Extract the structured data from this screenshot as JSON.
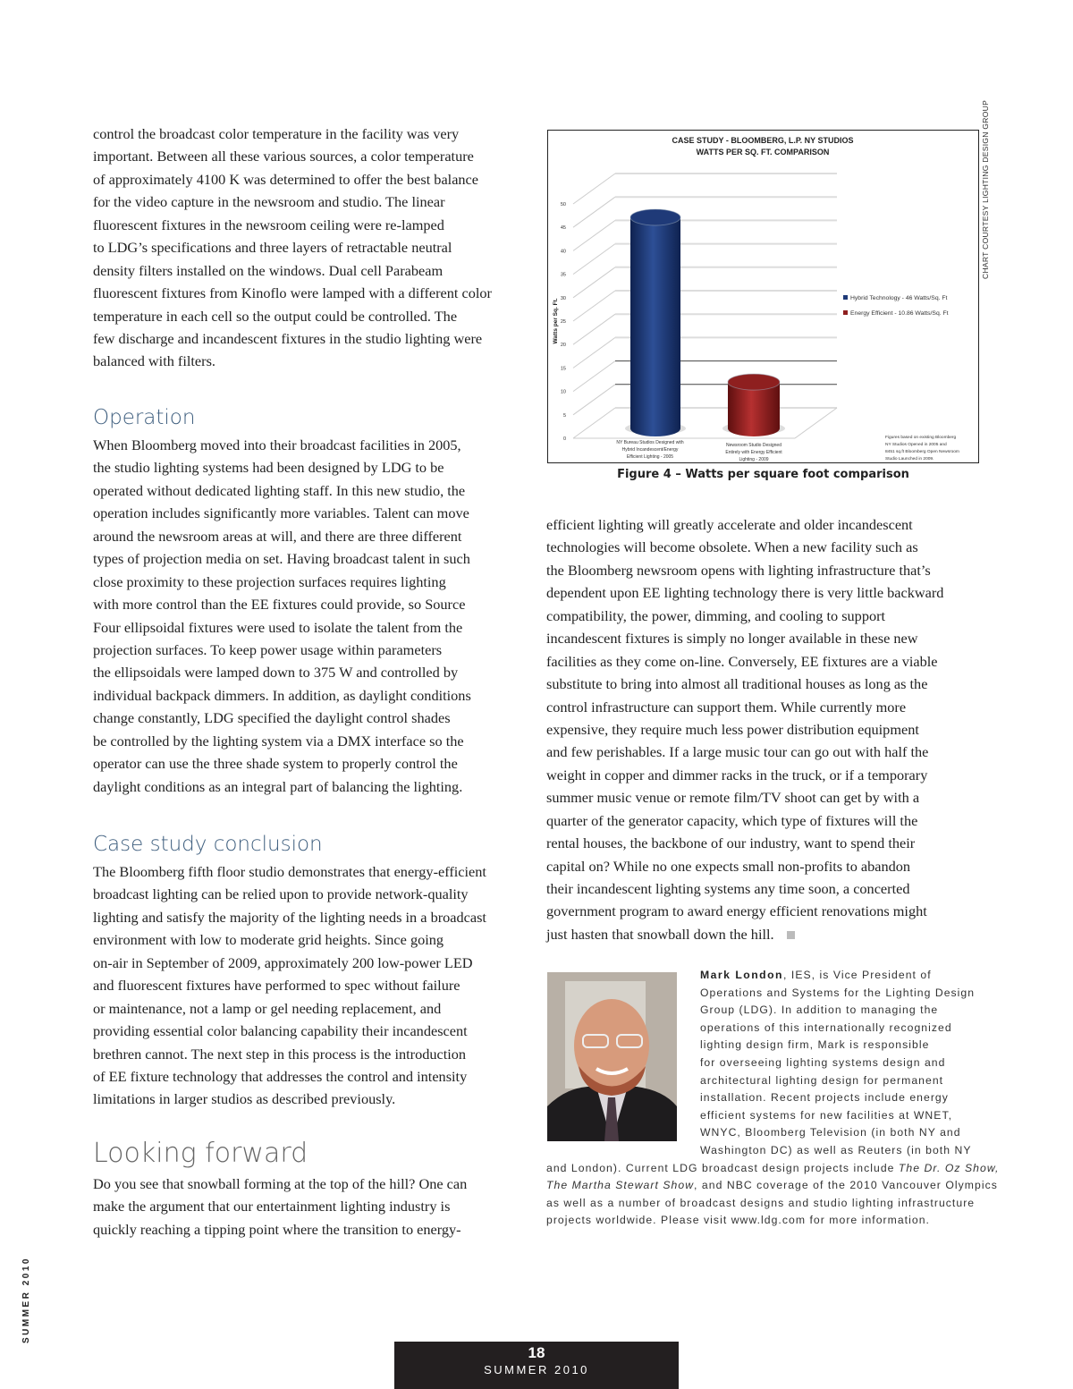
{
  "left_column": {
    "intro_lines": [
      "control the broadcast color temperature in the facility was very",
      "important. Between all these various sources, a color temperature",
      "of approximately 4100 K was determined to offer the best balance",
      "for the video capture in the newsroom and studio. The linear",
      "fluorescent fixtures in the newsroom ceiling were re-lamped",
      "to LDG’s specifications and three layers of retractable neutral",
      "density filters installed on the windows. Dual cell Parabeam",
      "fluorescent fixtures from Kinoflo were lamped with a different color",
      "temperature in each cell so the output could be controlled. The",
      "few discharge and incandescent fixtures in the studio lighting were",
      "balanced with filters."
    ],
    "operation_heading": "Operation",
    "operation_lines": [
      "When Bloomberg moved into their broadcast facilities in 2005,",
      "the studio lighting systems had been designed by LDG to be",
      "operated without dedicated lighting staff. In this new studio, the",
      "operation includes significantly more variables. Talent can move",
      "around the newsroom areas at will, and there are three different",
      "types of projection media on set. Having broadcast talent in such",
      "close proximity to these projection surfaces requires lighting",
      "with more control than the EE fixtures could provide, so Source",
      "Four ellipsoidal fixtures were used to isolate the talent from the",
      "projection surfaces. To keep power usage within parameters",
      "the ellipsoidals were lamped down to 375 W and controlled by",
      "individual backpack dimmers. In addition, as daylight conditions",
      "change constantly, LDG specified the daylight control shades",
      "be controlled by the lighting system via a DMX interface so the",
      "operator can use the three shade system to properly control the",
      "daylight conditions as an integral part of balancing the lighting."
    ],
    "conclusion_heading": "Case study conclusion",
    "conclusion_lines": [
      "The Bloomberg fifth floor studio demonstrates that energy-efficient",
      "broadcast lighting can be relied upon to provide network-quality",
      "lighting and satisfy the majority of the lighting needs in a broadcast",
      "environment with low to moderate grid heights. Since going",
      "on-air in September of 2009, approximately 200 low-power LED",
      "and fluorescent fixtures have performed to spec without failure",
      "or maintenance, not a lamp or gel needing replacement, and",
      "providing essential color balancing capability their incandescent",
      "brethren cannot. The next step in this process is the introduction",
      "of EE fixture technology that addresses the control and intensity",
      "limitations in larger studios as described previously."
    ],
    "forward_heading": "Looking forward",
    "forward_lines": [
      "  Do you see that snowball forming at the top of the hill? One can",
      "make the argument that our entertainment lighting industry is",
      "quickly reaching a tipping point where the transition to energy-"
    ]
  },
  "right_column": {
    "figure_caption": "Figure 4 – Watts per square foot comparison",
    "chart_credit": "CHART COURTESY LIGHTING DESIGN GROUP",
    "body_lines": [
      "efficient lighting will greatly accelerate and older incandescent",
      "technologies will become obsolete. When a new facility such as",
      "the Bloomberg newsroom opens with lighting infrastructure that’s",
      "dependent upon EE lighting technology there is very little backward",
      "compatibility, the power, dimming, and cooling to support",
      "incandescent fixtures is simply no longer available in these new",
      "facilities as they come on-line. Conversely, EE fixtures are a viable",
      "substitute to bring into almost all traditional houses as long as the",
      "control infrastructure can support them. While currently more",
      "expensive, they require much less power distribution equipment",
      "and few perishables. If a large music tour can go out with half the",
      "weight in copper and dimmer racks in the truck, or if a temporary",
      "summer music venue or remote film/TV shoot can get by with a",
      "quarter of the generator capacity, which type of fixtures will the",
      "rental houses, the backbone of our industry, want to spend their",
      "capital on?  While no one expects small non-profits to abandon",
      "their incandescent lighting systems any time soon, a concerted",
      "government program to award energy efficient renovations might",
      "just hasten that snowball down the hill."
    ],
    "bio": {
      "name": "Mark London",
      "first_line_rest": ", IES, is Vice President of",
      "indented_lines": [
        "Operations and Systems for the Lighting Design",
        "Group (LDG). In addition to managing the",
        "operations of this internationally recognized",
        "lighting design firm, Mark is responsible",
        "for overseeing lighting systems design and",
        "architectural lighting design for permanent",
        "installation. Recent projects include energy",
        "efficient systems for new facilities at WNET,",
        "WNYC, Bloomberg Television (in both NY and",
        "Washington DC) as well as Reuters (in both NY"
      ],
      "line12_a": "and London). Current LDG broadcast design projects include ",
      "line12_italic": "The Dr. Oz Show,",
      "line13_italic": "The Martha Stewart Show",
      "line13_b": ", and NBC coverage of the 2010 Vancouver Olympics",
      "full_lines": [
        "as well as a number of broadcast designs and studio lighting infrastructure",
        "projects worldwide. Please visit www.ldg.com for more information."
      ]
    }
  },
  "sidebar_label": "SUMMER 2010",
  "footer": {
    "page_number": "18",
    "issue": "SUMMER 2010"
  },
  "colors": {
    "heading": "#3f5f7f",
    "hybrid": "#1f3a78",
    "efficient": "#8e1f1f"
  },
  "chart_data": {
    "type": "bar",
    "title": "CASE STUDY - BLOOMBERG, L.P. NY STUDIOS",
    "subtitle": "WATTS PER SQ. FT. COMPARISON",
    "ylabel": "Watts per Sq. Ft.",
    "ylim": [
      0,
      50
    ],
    "yticks": [
      "0",
      "5",
      "10",
      "15",
      "20",
      "25",
      "30",
      "35",
      "40",
      "45",
      "50"
    ],
    "grid": true,
    "style": "3d-cylinder",
    "categories": [
      [
        "NY Bureau Studios Designed with",
        "Hybrid Incandescent/Energy",
        "Efficient Lighting - 2005"
      ],
      [
        "Newsroom Studio Designed",
        "Entirely with Energy Efficient",
        "Lighting - 2009"
      ]
    ],
    "values": [
      46,
      10.86
    ],
    "bar_colors": [
      "#1f3a78",
      "#8e1f1f"
    ],
    "legend_position": "right",
    "legend": [
      "Hybrid Technology - 46 Watts/Sq. Ft",
      "Energy Efficient - 10.86 Watts/Sq. Ft"
    ],
    "note": [
      "Figures based on existing Bloomberg",
      "NY Studios Opened in 2005 and",
      "8451 sq.ft Bloomberg Open Newsroom",
      "Studio Launched in 2009."
    ]
  }
}
